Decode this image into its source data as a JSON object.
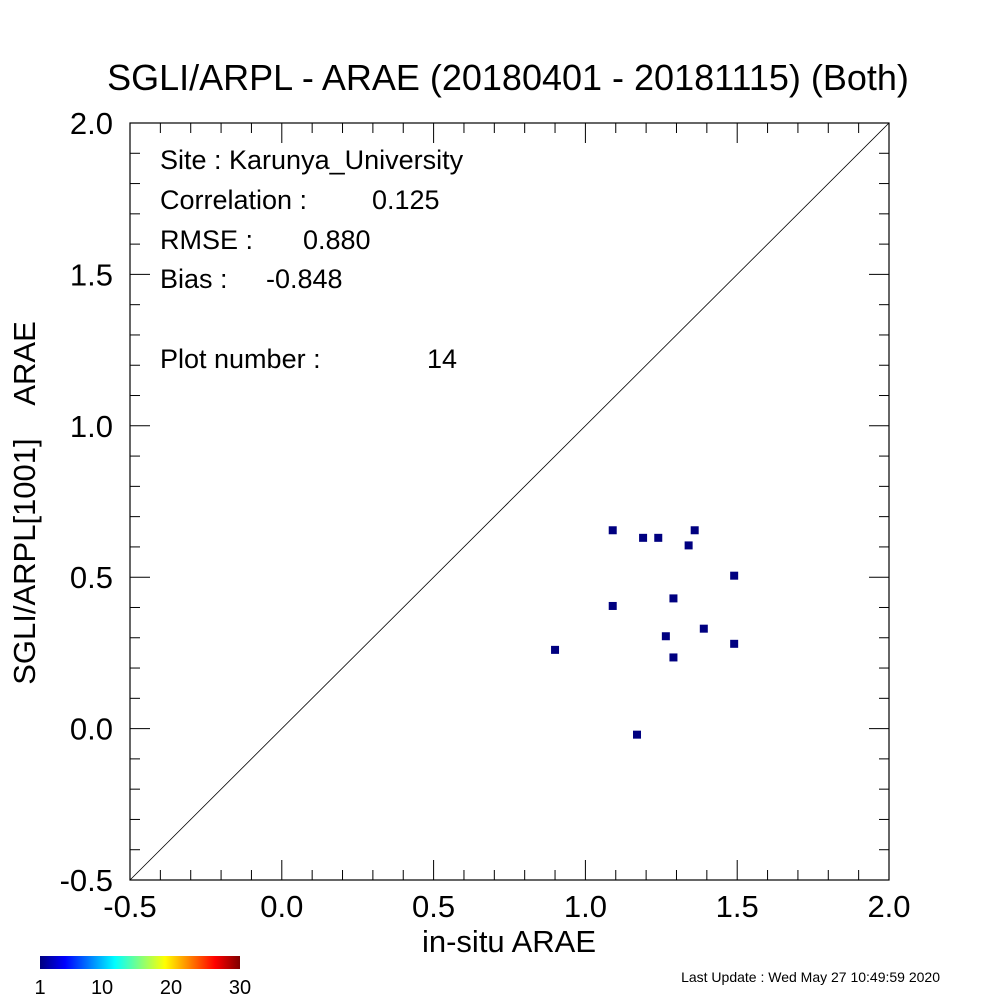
{
  "chart_data": {
    "type": "scatter",
    "title": "SGLI/ARPL - ARAE (20180401 - 20181115) (Both)",
    "xlabel": "in-situ ARAE",
    "ylabel": "SGLI/ARPL[1001]    ARAE",
    "xlim": [
      -0.5,
      2.0
    ],
    "ylim": [
      -0.5,
      2.0
    ],
    "xticks": [
      "-0.5",
      "0.0",
      "0.5",
      "1.0",
      "1.5",
      "2.0"
    ],
    "yticks": [
      "-0.5",
      "0.0",
      "0.5",
      "1.0",
      "1.5",
      "2.0"
    ],
    "reference_line": "1:1",
    "grid": false,
    "points": [
      {
        "x": 0.9,
        "y": 0.26
      },
      {
        "x": 1.09,
        "y": 0.655
      },
      {
        "x": 1.09,
        "y": 0.405
      },
      {
        "x": 1.17,
        "y": -0.02
      },
      {
        "x": 1.19,
        "y": 0.63
      },
      {
        "x": 1.24,
        "y": 0.63
      },
      {
        "x": 1.265,
        "y": 0.305
      },
      {
        "x": 1.29,
        "y": 0.43
      },
      {
        "x": 1.29,
        "y": 0.235
      },
      {
        "x": 1.34,
        "y": 0.605
      },
      {
        "x": 1.36,
        "y": 0.655
      },
      {
        "x": 1.39,
        "y": 0.33
      },
      {
        "x": 1.49,
        "y": 0.505
      },
      {
        "x": 1.49,
        "y": 0.28
      }
    ],
    "point_color": "#000080",
    "annotations": {
      "site": "Site : Karunya_University",
      "correlation_label": "Correlation :",
      "correlation_value": "0.125",
      "rmse_label": "RMSE :",
      "rmse_value": "0.880",
      "bias_label": "Bias :",
      "bias_value": "-0.848",
      "plot_number_label": "Plot number :",
      "plot_number_value": "14"
    },
    "colorbar": {
      "ticks": [
        "1",
        "10",
        "20",
        "30"
      ],
      "colors": [
        "#00007f",
        "#0000ff",
        "#0080ff",
        "#00ffff",
        "#80ff80",
        "#ffff00",
        "#ff8000",
        "#ff0000",
        "#7f0000"
      ]
    }
  },
  "footer": {
    "last_update": "Last Update : Wed May 27 10:49:59 2020"
  }
}
